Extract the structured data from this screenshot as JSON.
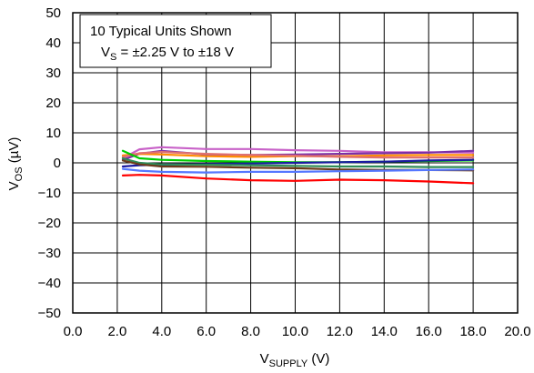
{
  "chart_data": {
    "type": "line",
    "title": "",
    "annotation": {
      "line1": "10 Typical Units Shown",
      "line2_prefix": "V",
      "line2_sub": "S",
      "line2_suffix": " = ±2.25 V to ±18 V"
    },
    "xlabel": {
      "main": "V",
      "sub": "SUPPLY",
      "suffix": " (V)"
    },
    "ylabel": {
      "main": "V",
      "sub": "OS",
      "suffix": " (µV)"
    },
    "xlim": [
      0,
      20
    ],
    "ylim": [
      -50,
      50
    ],
    "x_ticks": [
      {
        "value": 0,
        "label": "0.0"
      },
      {
        "value": 2,
        "label": "2.0"
      },
      {
        "value": 4,
        "label": "4.0"
      },
      {
        "value": 6,
        "label": "6.0"
      },
      {
        "value": 8,
        "label": "8.0"
      },
      {
        "value": 10,
        "label": "10.0"
      },
      {
        "value": 12,
        "label": "12.0"
      },
      {
        "value": 14,
        "label": "14.0"
      },
      {
        "value": 16,
        "label": "16.0"
      },
      {
        "value": 18,
        "label": "18.0"
      },
      {
        "value": 20,
        "label": "20.0"
      }
    ],
    "y_ticks": [
      {
        "value": 50,
        "label": "50"
      },
      {
        "value": 40,
        "label": "40"
      },
      {
        "value": 30,
        "label": "30"
      },
      {
        "value": 20,
        "label": "20"
      },
      {
        "value": 10,
        "label": "10"
      },
      {
        "value": 0,
        "label": "0"
      },
      {
        "value": -10,
        "label": "−10"
      },
      {
        "value": -20,
        "label": "−20"
      },
      {
        "value": -30,
        "label": "−30"
      },
      {
        "value": -40,
        "label": "−40"
      },
      {
        "value": -50,
        "label": "−50"
      }
    ],
    "grid": true,
    "x": [
      2.25,
      3,
      4,
      6,
      8,
      10,
      12,
      14,
      16,
      18
    ],
    "series": [
      {
        "color": "#c862c8",
        "values": [
          1.5,
          4.5,
          5.2,
          4.6,
          4.6,
          4.2,
          4.0,
          3.5,
          3.5,
          3.4
        ]
      },
      {
        "color": "#7b2fa8",
        "values": [
          1.0,
          3.0,
          4.0,
          2.8,
          2.6,
          2.8,
          3.0,
          3.2,
          3.4,
          4.0
        ]
      },
      {
        "color": "#ff8c00",
        "values": [
          2.5,
          3.0,
          2.8,
          2.2,
          2.0,
          2.2,
          2.2,
          2.5,
          2.6,
          2.6
        ]
      },
      {
        "color": "#e07070",
        "values": [
          2.0,
          3.2,
          3.6,
          3.0,
          2.6,
          2.4,
          2.0,
          1.8,
          1.8,
          1.8
        ]
      },
      {
        "color": "#00cc00",
        "values": [
          4.0,
          1.5,
          1.0,
          0.6,
          0.4,
          0.2,
          0.2,
          0.4,
          0.6,
          0.8
        ]
      },
      {
        "color": "#1a1aa0",
        "values": [
          -1.2,
          -0.8,
          -0.6,
          -0.4,
          -0.2,
          0.0,
          0.2,
          0.4,
          0.8,
          1.0
        ]
      },
      {
        "color": "#2e8b57",
        "values": [
          1.5,
          0.0,
          -0.5,
          -0.6,
          -0.8,
          -1.0,
          -1.2,
          -1.2,
          -1.4,
          -1.4
        ]
      },
      {
        "color": "#6b3a1a",
        "values": [
          0.8,
          -0.5,
          -1.2,
          -1.3,
          -1.6,
          -1.8,
          -2.2,
          -2.4,
          -2.4,
          -2.5
        ]
      },
      {
        "color": "#5577ff",
        "values": [
          -2.0,
          -2.6,
          -3.0,
          -3.2,
          -3.0,
          -3.0,
          -2.8,
          -2.6,
          -2.4,
          -2.2
        ]
      },
      {
        "color": "#ff0000",
        "values": [
          -4.2,
          -4.0,
          -4.2,
          -5.2,
          -5.8,
          -6.0,
          -5.6,
          -5.8,
          -6.2,
          -6.8
        ]
      }
    ]
  }
}
